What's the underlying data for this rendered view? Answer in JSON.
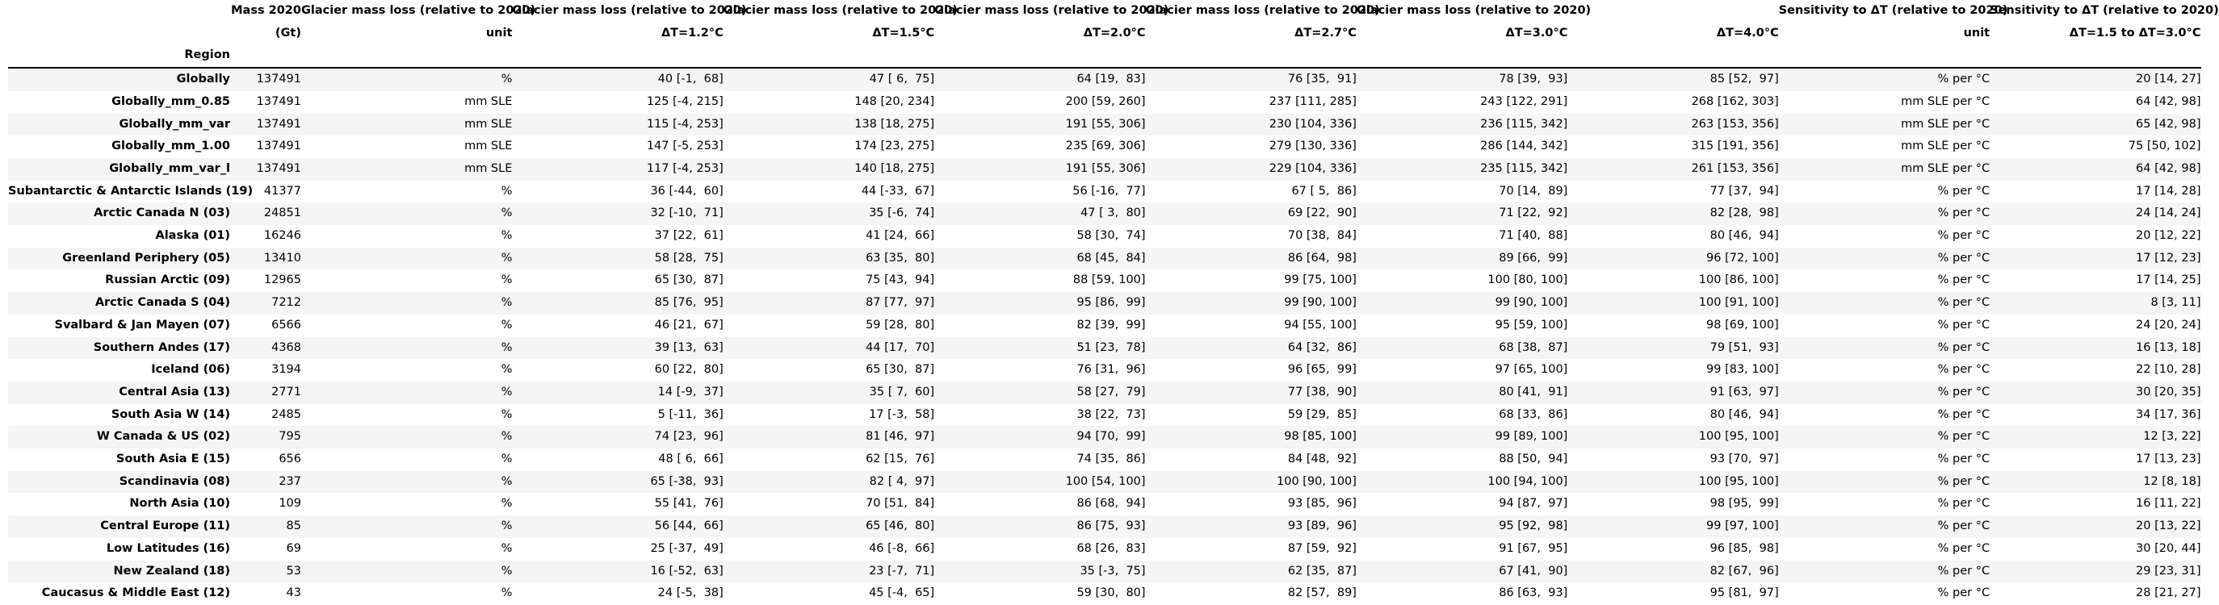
{
  "table": {
    "header_rows": [
      [
        "",
        "Mass 2020",
        "Glacier mass loss (relative to 2020)",
        "Glacier mass loss (relative to 2020)",
        "Glacier mass loss (relative to 2020)",
        "Glacier mass loss (relative to 2020)",
        "Glacier mass loss (relative to 2020)",
        "Glacier mass loss (relative to 2020)",
        "Sensitivity to ΔT (relative to 2020)",
        "Sensitivity to ΔT (relative to 2020)"
      ],
      [
        "",
        "(Gt)",
        "unit",
        "ΔT=1.2°C",
        "ΔT=1.5°C",
        "ΔT=2.0°C",
        "ΔT=2.7°C",
        "ΔT=3.0°C",
        "ΔT=4.0°C",
        "unit",
        "ΔT=1.5 to ΔT=3.0°C"
      ],
      [
        "Region",
        "",
        "",
        "",
        "",
        "",
        "",
        "",
        "",
        "",
        ""
      ]
    ],
    "rows": [
      [
        "Globally",
        "137491",
        "%",
        "40 [-1,  68]",
        "47 [ 6,  75]",
        "64 [19,  83]",
        "76 [35,  91]",
        "78 [39,  93]",
        "85 [52,  97]",
        "% per °C",
        "20 [14, 27]"
      ],
      [
        "Globally_mm_0.85",
        "137491",
        "mm SLE",
        "125 [-4, 215]",
        "148 [20, 234]",
        "200 [59, 260]",
        "237 [111, 285]",
        "243 [122, 291]",
        "268 [162, 303]",
        "mm SLE per °C",
        "64 [42, 98]"
      ],
      [
        "Globally_mm_var",
        "137491",
        "mm SLE",
        "115 [-4, 253]",
        "138 [18, 275]",
        "191 [55, 306]",
        "230 [104, 336]",
        "236 [115, 342]",
        "263 [153, 356]",
        "mm SLE per °C",
        "65 [42, 98]"
      ],
      [
        "Globally_mm_1.00",
        "137491",
        "mm SLE",
        "147 [-5, 253]",
        "174 [23, 275]",
        "235 [69, 306]",
        "279 [130, 336]",
        "286 [144, 342]",
        "315 [191, 356]",
        "mm SLE per °C",
        "75 [50, 102]"
      ],
      [
        "Globally_mm_var_l",
        "137491",
        "mm SLE",
        "117 [-4, 253]",
        "140 [18, 275]",
        "191 [55, 306]",
        "229 [104, 336]",
        "235 [115, 342]",
        "261 [153, 356]",
        "mm SLE per °C",
        "64 [42, 98]"
      ],
      [
        "Subantarctic & Antarctic Islands (19)",
        "41377",
        "%",
        "36 [-44,  60]",
        "44 [-33,  67]",
        "56 [-16,  77]",
        "67 [ 5,  86]",
        "70 [14,  89]",
        "77 [37,  94]",
        "% per °C",
        "17 [14, 28]"
      ],
      [
        "Arctic Canada N (03)",
        "24851",
        "%",
        "32 [-10,  71]",
        "35 [-6,  74]",
        "47 [ 3,  80]",
        "69 [22,  90]",
        "71 [22,  92]",
        "82 [28,  98]",
        "% per °C",
        "24 [14, 24]"
      ],
      [
        "Alaska (01)",
        "16246",
        "%",
        "37 [22,  61]",
        "41 [24,  66]",
        "58 [30,  74]",
        "70 [38,  84]",
        "71 [40,  88]",
        "80 [46,  94]",
        "% per °C",
        "20 [12, 22]"
      ],
      [
        "Greenland Periphery (05)",
        "13410",
        "%",
        "58 [28,  75]",
        "63 [35,  80]",
        "68 [45,  84]",
        "86 [64,  98]",
        "89 [66,  99]",
        "96 [72, 100]",
        "% per °C",
        "17 [12, 23]"
      ],
      [
        "Russian Arctic (09)",
        "12965",
        "%",
        "65 [30,  87]",
        "75 [43,  94]",
        "88 [59, 100]",
        "99 [75, 100]",
        "100 [80, 100]",
        "100 [86, 100]",
        "% per °C",
        "17 [14, 25]"
      ],
      [
        "Arctic Canada S (04)",
        "7212",
        "%",
        "85 [76,  95]",
        "87 [77,  97]",
        "95 [86,  99]",
        "99 [90, 100]",
        "99 [90, 100]",
        "100 [91, 100]",
        "% per °C",
        "8 [3, 11]"
      ],
      [
        "Svalbard & Jan Mayen (07)",
        "6566",
        "%",
        "46 [21,  67]",
        "59 [28,  80]",
        "82 [39,  99]",
        "94 [55, 100]",
        "95 [59, 100]",
        "98 [69, 100]",
        "% per °C",
        "24 [20, 24]"
      ],
      [
        "Southern Andes (17)",
        "4368",
        "%",
        "39 [13,  63]",
        "44 [17,  70]",
        "51 [23,  78]",
        "64 [32,  86]",
        "68 [38,  87]",
        "79 [51,  93]",
        "% per °C",
        "16 [13, 18]"
      ],
      [
        "Iceland (06)",
        "3194",
        "%",
        "60 [22,  80]",
        "65 [30,  87]",
        "76 [31,  96]",
        "96 [65,  99]",
        "97 [65, 100]",
        "99 [83, 100]",
        "% per °C",
        "22 [10, 28]"
      ],
      [
        "Central Asia (13)",
        "2771",
        "%",
        "14 [-9,  37]",
        "35 [ 7,  60]",
        "58 [27,  79]",
        "77 [38,  90]",
        "80 [41,  91]",
        "91 [63,  97]",
        "% per °C",
        "30 [20, 35]"
      ],
      [
        "South Asia W (14)",
        "2485",
        "%",
        "5 [-11,  36]",
        "17 [-3,  58]",
        "38 [22,  73]",
        "59 [29,  85]",
        "68 [33,  86]",
        "80 [46,  94]",
        "% per °C",
        "34 [17, 36]"
      ],
      [
        "W Canada & US (02)",
        "795",
        "%",
        "74 [23,  96]",
        "81 [46,  97]",
        "94 [70,  99]",
        "98 [85, 100]",
        "99 [89, 100]",
        "100 [95, 100]",
        "% per °C",
        "12 [3, 22]"
      ],
      [
        "South Asia E (15)",
        "656",
        "%",
        "48 [ 6,  66]",
        "62 [15,  76]",
        "74 [35,  86]",
        "84 [48,  92]",
        "88 [50,  94]",
        "93 [70,  97]",
        "% per °C",
        "17 [13, 23]"
      ],
      [
        "Scandinavia (08)",
        "237",
        "%",
        "65 [-38,  93]",
        "82 [ 4,  97]",
        "100 [54, 100]",
        "100 [90, 100]",
        "100 [94, 100]",
        "100 [95, 100]",
        "% per °C",
        "12 [8, 18]"
      ],
      [
        "North Asia (10)",
        "109",
        "%",
        "55 [41,  76]",
        "70 [51,  84]",
        "86 [68,  94]",
        "93 [85,  96]",
        "94 [87,  97]",
        "98 [95,  99]",
        "% per °C",
        "16 [11, 22]"
      ],
      [
        "Central Europe (11)",
        "85",
        "%",
        "56 [44,  66]",
        "65 [46,  80]",
        "86 [75,  93]",
        "93 [89,  96]",
        "95 [92,  98]",
        "99 [97, 100]",
        "% per °C",
        "20 [13, 22]"
      ],
      [
        "Low Latitudes (16)",
        "69",
        "%",
        "25 [-37,  49]",
        "46 [-8,  66]",
        "68 [26,  83]",
        "87 [59,  92]",
        "91 [67,  95]",
        "96 [85,  98]",
        "% per °C",
        "30 [20, 44]"
      ],
      [
        "New Zealand (18)",
        "53",
        "%",
        "16 [-52,  63]",
        "23 [-7,  71]",
        "35 [-3,  75]",
        "62 [35,  87]",
        "67 [41,  90]",
        "82 [67,  96]",
        "% per °C",
        "29 [23, 31]"
      ],
      [
        "Caucasus & Middle East (12)",
        "43",
        "%",
        "24 [-5,  38]",
        "45 [-4,  65]",
        "59 [30,  80]",
        "82 [57,  89]",
        "86 [63,  93]",
        "95 [81,  97]",
        "% per °C",
        "28 [21, 27]"
      ]
    ]
  }
}
